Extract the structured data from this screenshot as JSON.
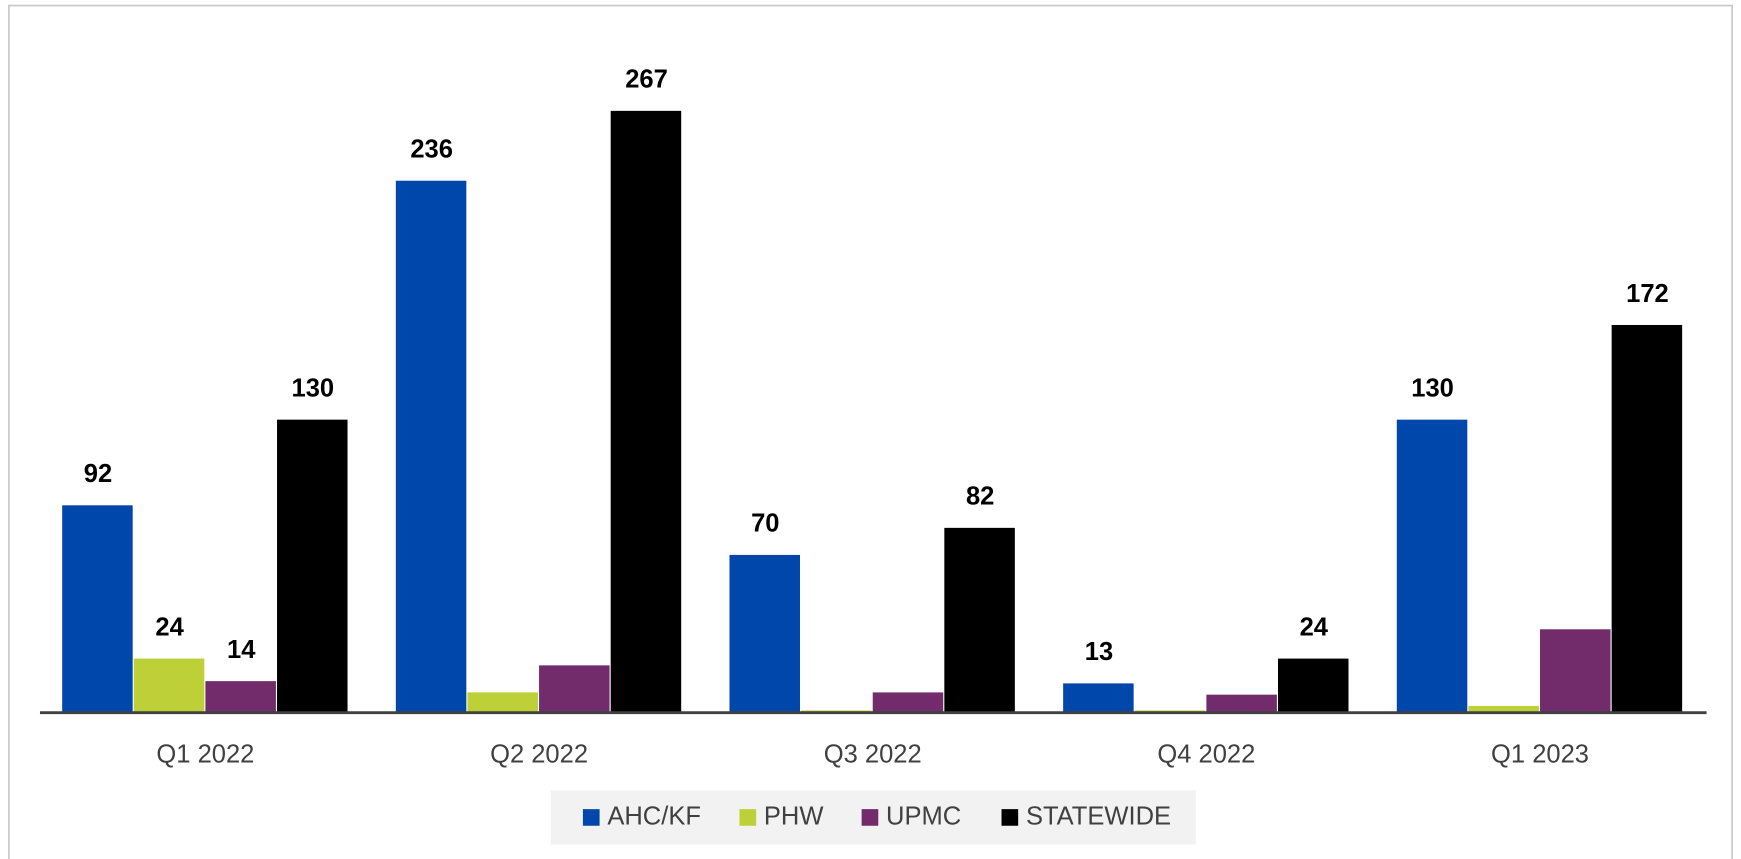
{
  "chart_data": {
    "type": "bar",
    "categories": [
      "Q1 2022",
      "Q2 2022",
      "Q3 2022",
      "Q4 2022",
      "Q1 2023"
    ],
    "series": [
      {
        "name": "AHC/KF",
        "color": "#0047ab",
        "values": [
          92,
          236,
          70,
          13,
          130
        ],
        "value_labels": [
          "92",
          "236",
          "70",
          "13",
          "130"
        ]
      },
      {
        "name": "PHW",
        "color": "#bdd037",
        "values": [
          24,
          9,
          1,
          1,
          3
        ],
        "value_labels": [
          "24",
          null,
          null,
          null,
          null
        ]
      },
      {
        "name": "UPMC",
        "color": "#722b6b",
        "values": [
          14,
          21,
          9,
          8,
          37
        ],
        "value_labels": [
          "14",
          null,
          null,
          null,
          null
        ]
      },
      {
        "name": "STATEWIDE",
        "color": "#000000",
        "values": [
          130,
          267,
          82,
          24,
          172
        ],
        "value_labels": [
          "130",
          "267",
          "82",
          "24",
          "172"
        ]
      }
    ],
    "legend": "bottom"
  }
}
